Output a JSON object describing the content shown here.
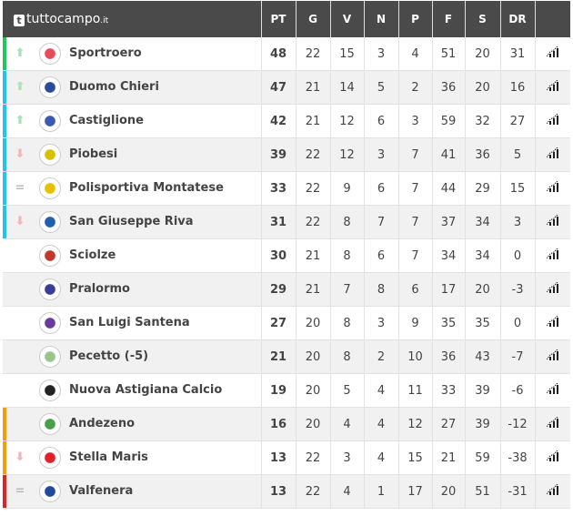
{
  "header": {
    "brand": "tuttocampo",
    "brand_suffix": ".it",
    "columns": [
      "PT",
      "G",
      "V",
      "N",
      "P",
      "F",
      "S",
      "DR"
    ]
  },
  "colors": {
    "header_bg": "#4a4a4a",
    "promotion": "#22c55e",
    "playoff": "#22c3ee",
    "playout": "#f59e0b",
    "relegation": "#dc2626",
    "trend_up": "#a7e3b5",
    "trend_down": "#f5b5b8",
    "trend_same": "#bbbbbb"
  },
  "rows": [
    {
      "team": "Sportroero",
      "zone": "promotion",
      "trend": "up",
      "crest": "#e84c5a",
      "pt": "48",
      "g": "22",
      "v": "15",
      "n": "3",
      "p": "4",
      "f": "51",
      "s": "20",
      "dr": "31"
    },
    {
      "team": "Duomo Chieri",
      "zone": "playoff",
      "trend": "up",
      "crest": "#2a4a9a",
      "pt": "47",
      "g": "21",
      "v": "14",
      "n": "5",
      "p": "2",
      "f": "36",
      "s": "20",
      "dr": "16"
    },
    {
      "team": "Castiglione",
      "zone": "playoff",
      "trend": "up",
      "crest": "#3a5ab0",
      "pt": "42",
      "g": "21",
      "v": "12",
      "n": "6",
      "p": "3",
      "f": "59",
      "s": "32",
      "dr": "27"
    },
    {
      "team": "Piobesi",
      "zone": "playoff",
      "trend": "down",
      "crest": "#d6c200",
      "pt": "39",
      "g": "22",
      "v": "12",
      "n": "3",
      "p": "7",
      "f": "41",
      "s": "36",
      "dr": "5"
    },
    {
      "team": "Polisportiva Montatese",
      "zone": "playoff",
      "trend": "same",
      "crest": "#e8c000",
      "pt": "33",
      "g": "22",
      "v": "9",
      "n": "6",
      "p": "7",
      "f": "44",
      "s": "29",
      "dr": "15"
    },
    {
      "team": "San Giuseppe Riva",
      "zone": "playoff",
      "trend": "down",
      "crest": "#1f5fae",
      "pt": "31",
      "g": "22",
      "v": "8",
      "n": "7",
      "p": "7",
      "f": "37",
      "s": "34",
      "dr": "3"
    },
    {
      "team": "Sciolze",
      "zone": "",
      "trend": "",
      "crest": "#c0392b",
      "pt": "30",
      "g": "21",
      "v": "8",
      "n": "6",
      "p": "7",
      "f": "34",
      "s": "34",
      "dr": "0"
    },
    {
      "team": "Pralormo",
      "zone": "",
      "trend": "",
      "crest": "#3b3b9a",
      "pt": "29",
      "g": "21",
      "v": "7",
      "n": "8",
      "p": "6",
      "f": "17",
      "s": "20",
      "dr": "-3"
    },
    {
      "team": "San Luigi Santena",
      "zone": "",
      "trend": "",
      "crest": "#6a3aa0",
      "pt": "27",
      "g": "20",
      "v": "8",
      "n": "3",
      "p": "9",
      "f": "35",
      "s": "35",
      "dr": "0"
    },
    {
      "team": "Pecetto (-5)",
      "zone": "",
      "trend": "",
      "crest": "#9ac48a",
      "pt": "21",
      "g": "20",
      "v": "8",
      "n": "2",
      "p": "10",
      "f": "36",
      "s": "43",
      "dr": "-7"
    },
    {
      "team": "Nuova Astigiana Calcio",
      "zone": "",
      "trend": "",
      "crest": "#222222",
      "pt": "19",
      "g": "20",
      "v": "5",
      "n": "4",
      "p": "11",
      "f": "33",
      "s": "39",
      "dr": "-6"
    },
    {
      "team": "Andezeno",
      "zone": "playout",
      "trend": "",
      "crest": "#4aa04a",
      "pt": "16",
      "g": "20",
      "v": "4",
      "n": "4",
      "p": "12",
      "f": "27",
      "s": "39",
      "dr": "-12"
    },
    {
      "team": "Stella Maris",
      "zone": "playout",
      "trend": "down",
      "crest": "#e0202a",
      "pt": "13",
      "g": "22",
      "v": "3",
      "n": "4",
      "p": "15",
      "f": "21",
      "s": "59",
      "dr": "-38"
    },
    {
      "team": "Valfenera",
      "zone": "relegation",
      "trend": "same",
      "crest": "#1f4aa0",
      "pt": "13",
      "g": "22",
      "v": "4",
      "n": "1",
      "p": "17",
      "f": "20",
      "s": "51",
      "dr": "-31"
    }
  ]
}
